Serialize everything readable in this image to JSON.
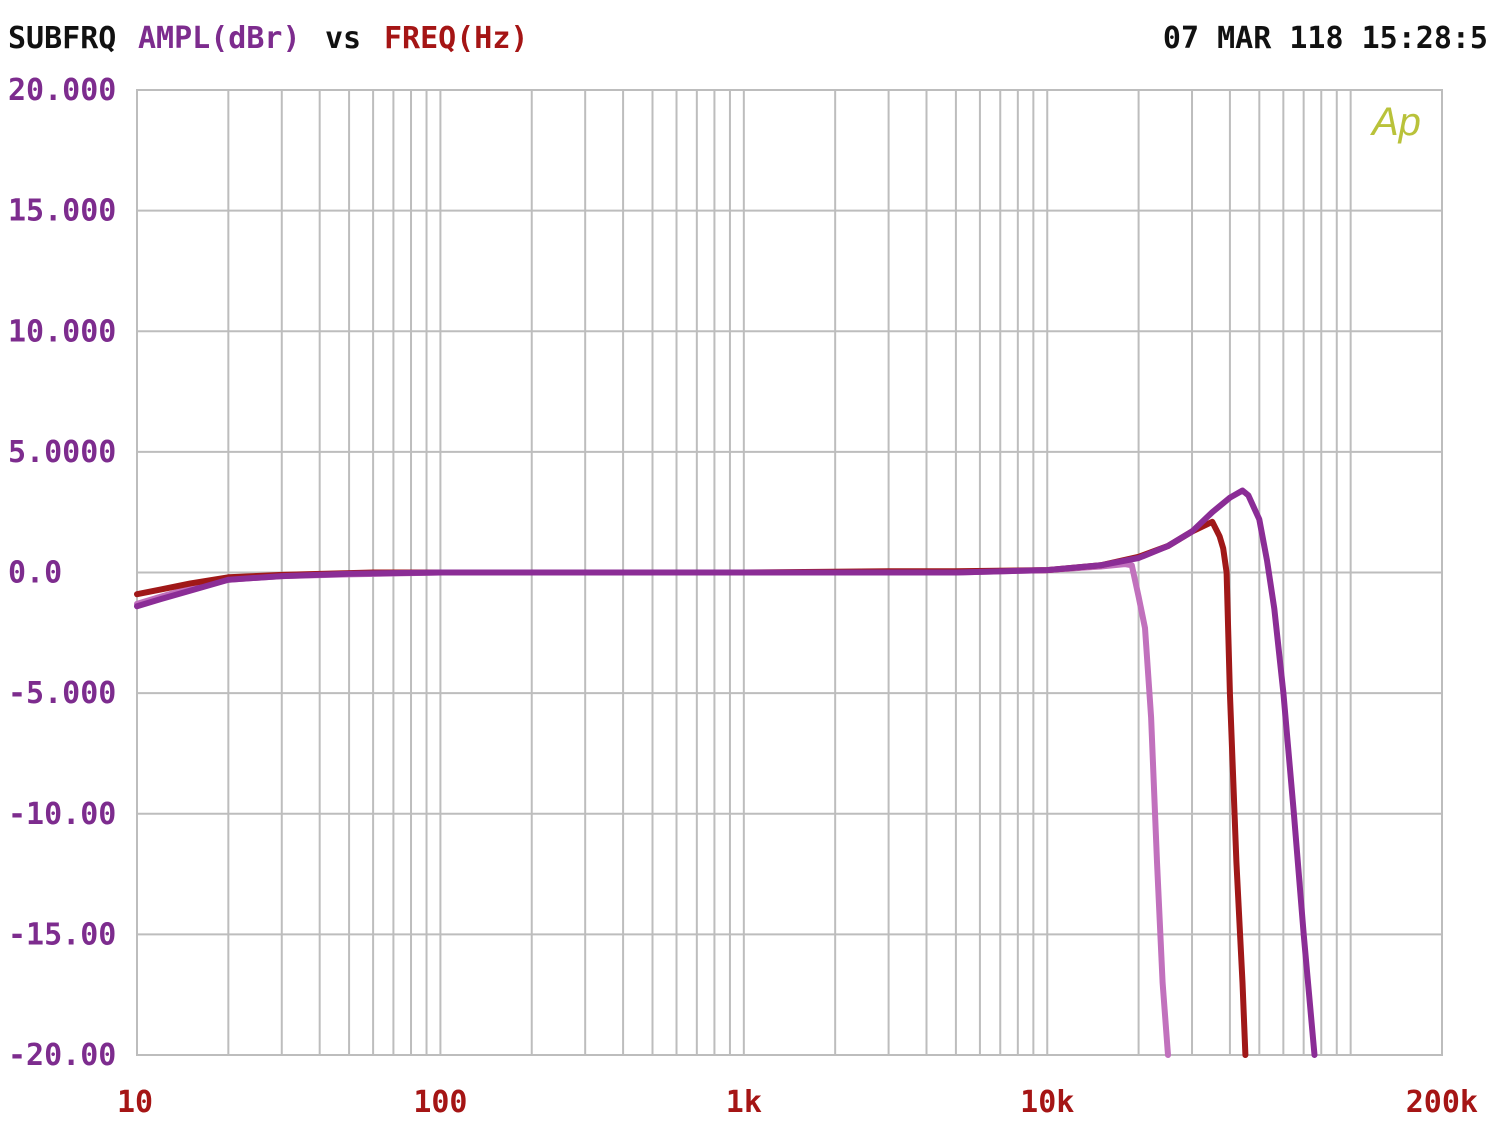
{
  "header": {
    "prefix": "SUBFRQ",
    "y_quantity": "AMPL(dBr)",
    "versus": "vs",
    "x_quantity": "FREQ(Hz)",
    "timestamp": "07 MAR 118 15:28:5"
  },
  "logo": {
    "text": "Ap",
    "color": "#b9c23a"
  },
  "colors": {
    "background": "#ffffff",
    "grid": "#bdbdbd",
    "header_text": "#111111",
    "y_tick_text": "#7d2c8e",
    "x_tick_text": "#a51515"
  },
  "chart_data": {
    "type": "line",
    "title": "",
    "xlabel": "FREQ(Hz)",
    "ylabel": "AMPL(dBr)",
    "x_scale": "log",
    "xlim": [
      10,
      200000
    ],
    "ylim": [
      -20,
      20
    ],
    "grid": true,
    "legend": "none",
    "y_ticks": [
      {
        "value": 20,
        "label": "20.000"
      },
      {
        "value": 15,
        "label": "15.000"
      },
      {
        "value": 10,
        "label": "10.000"
      },
      {
        "value": 5,
        "label": "5.0000"
      },
      {
        "value": 0,
        "label": "0.0"
      },
      {
        "value": -5,
        "label": "-5.000"
      },
      {
        "value": -10,
        "label": "-10.00"
      },
      {
        "value": -15,
        "label": "-15.00"
      },
      {
        "value": -20,
        "label": "-20.00"
      }
    ],
    "x_ticks": [
      {
        "value": 10,
        "label": "10"
      },
      {
        "value": 100,
        "label": "100"
      },
      {
        "value": 1000,
        "label": "1k"
      },
      {
        "value": 10000,
        "label": "10k"
      },
      {
        "value": 200000,
        "label": "200k"
      }
    ],
    "series": [
      {
        "color": "#c171bd",
        "points": [
          [
            10,
            -1.3
          ],
          [
            12,
            -1.0
          ],
          [
            15,
            -0.65
          ],
          [
            20,
            -0.3
          ],
          [
            30,
            -0.15
          ],
          [
            50,
            -0.08
          ],
          [
            100,
            0.0
          ],
          [
            1000,
            0.0
          ],
          [
            5000,
            0.0
          ],
          [
            10000,
            0.1
          ],
          [
            15000,
            0.25
          ],
          [
            18000,
            0.35
          ],
          [
            19000,
            0.3
          ],
          [
            20000,
            -1.0
          ],
          [
            21000,
            -2.3
          ],
          [
            22000,
            -6.0
          ],
          [
            23000,
            -12.0
          ],
          [
            24000,
            -17.0
          ],
          [
            25000,
            -20.0
          ]
        ]
      },
      {
        "color": "#a01818",
        "points": [
          [
            10,
            -0.9
          ],
          [
            12,
            -0.7
          ],
          [
            15,
            -0.45
          ],
          [
            20,
            -0.2
          ],
          [
            30,
            -0.1
          ],
          [
            60,
            0.0
          ],
          [
            100,
            0.0
          ],
          [
            1000,
            0.0
          ],
          [
            3000,
            0.05
          ],
          [
            5000,
            0.05
          ],
          [
            10000,
            0.1
          ],
          [
            15000,
            0.3
          ],
          [
            20000,
            0.65
          ],
          [
            25000,
            1.1
          ],
          [
            30000,
            1.7
          ],
          [
            35000,
            2.1
          ],
          [
            37000,
            1.5
          ],
          [
            38000,
            1.0
          ],
          [
            39000,
            0.0
          ],
          [
            40000,
            -5.0
          ],
          [
            42000,
            -12.0
          ],
          [
            44000,
            -17.0
          ],
          [
            45000,
            -20.0
          ]
        ]
      },
      {
        "color": "#8b2d96",
        "points": [
          [
            10,
            -1.4
          ],
          [
            12,
            -1.1
          ],
          [
            15,
            -0.75
          ],
          [
            20,
            -0.3
          ],
          [
            30,
            -0.15
          ],
          [
            50,
            -0.05
          ],
          [
            100,
            0.0
          ],
          [
            1000,
            0.0
          ],
          [
            5000,
            0.0
          ],
          [
            10000,
            0.1
          ],
          [
            15000,
            0.3
          ],
          [
            20000,
            0.6
          ],
          [
            25000,
            1.1
          ],
          [
            30000,
            1.7
          ],
          [
            35000,
            2.5
          ],
          [
            40000,
            3.1
          ],
          [
            44000,
            3.4
          ],
          [
            46000,
            3.2
          ],
          [
            50000,
            2.2
          ],
          [
            53000,
            0.5
          ],
          [
            56000,
            -1.5
          ],
          [
            60000,
            -5.0
          ],
          [
            65000,
            -10.0
          ],
          [
            70000,
            -15.0
          ],
          [
            76000,
            -20.0
          ]
        ]
      }
    ]
  }
}
